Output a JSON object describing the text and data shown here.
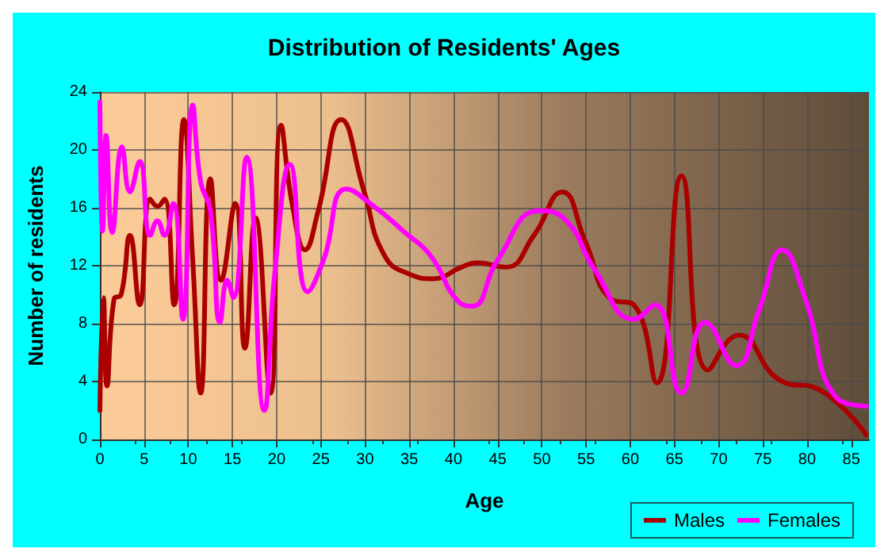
{
  "chart_data": {
    "type": "line",
    "title": "Distribution of Residents' Ages",
    "xlabel": "Age",
    "ylabel": "Number of residents",
    "xlim": [
      0,
      87
    ],
    "xticks": [
      0,
      5,
      10,
      15,
      20,
      25,
      30,
      35,
      40,
      45,
      50,
      55,
      60,
      65,
      70,
      75,
      80,
      85
    ],
    "ylim": [
      0,
      24
    ],
    "yticks": [
      0,
      4,
      8,
      12,
      16,
      20,
      24
    ],
    "grid": true,
    "legend": "bottom right",
    "marker": "none",
    "line_style": "solid",
    "series": [
      {
        "name": "Males",
        "color": "#aa0000",
        "x": [
          0,
          0.4,
          0.8,
          1.6,
          2.4,
          3.4,
          4.5,
          5.7,
          6.5,
          7.3,
          8.4,
          9.5,
          10.5,
          11.4,
          12.5,
          13.7,
          15.3,
          16.4,
          17.6,
          19.3,
          20.5,
          21.8,
          23.2,
          24.7,
          27.3,
          29.9,
          32.2,
          35.1,
          37.7,
          40.9,
          42.7,
          45.9,
          49.1,
          52.3,
          54.9,
          57.8,
          60.4,
          63,
          65.8,
          68.8,
          72.3,
          76.9,
          81.5,
          86.7
        ],
        "values": [
          2,
          9.8,
          3.7,
          9.7,
          10,
          14.1,
          9.3,
          16.6,
          16.1,
          16.6,
          9.3,
          22.1,
          12.4,
          3.2,
          18,
          11,
          16.3,
          6.3,
          15.3,
          3.2,
          21.7,
          16.1,
          13.1,
          15.8,
          22.1,
          17.1,
          12.7,
          11.4,
          11.1,
          11.9,
          12.2,
          11.9,
          14.1,
          17.1,
          13.7,
          9.7,
          9.3,
          3.9,
          18.2,
          4.8,
          7.2,
          4.1,
          3.4,
          0.3
        ]
      },
      {
        "name": "Females",
        "color": "#ff00ff",
        "x": [
          0,
          0.3,
          0.7,
          1.4,
          2.5,
          3.4,
          4.5,
          5.7,
          6.5,
          7.3,
          8.3,
          9.4,
          10.5,
          11.4,
          12.5,
          13.6,
          14.4,
          15.1,
          16.6,
          18.6,
          19.8,
          21.5,
          23.5,
          25.3,
          27.9,
          31,
          34.5,
          37.4,
          40.6,
          42.1,
          45,
          49.7,
          52.6,
          56,
          60.4,
          62.8,
          65.8,
          68.5,
          72,
          74.6,
          77.2,
          79.8,
          83.3,
          86.7
        ],
        "values": [
          23.3,
          14.4,
          21,
          14.3,
          20.2,
          17.1,
          19.2,
          14.1,
          15.1,
          14.1,
          16.3,
          8.3,
          23.1,
          17.8,
          15.8,
          8.1,
          11,
          9.8,
          19.5,
          2,
          11.6,
          19,
          10.2,
          12.4,
          17.3,
          16.1,
          14.3,
          12.7,
          9.5,
          9.2,
          12.4,
          15.8,
          15.2,
          11.7,
          8.3,
          9.3,
          3.2,
          8.1,
          5.1,
          9,
          13.1,
          9.7,
          2.9,
          2.3
        ]
      }
    ]
  }
}
